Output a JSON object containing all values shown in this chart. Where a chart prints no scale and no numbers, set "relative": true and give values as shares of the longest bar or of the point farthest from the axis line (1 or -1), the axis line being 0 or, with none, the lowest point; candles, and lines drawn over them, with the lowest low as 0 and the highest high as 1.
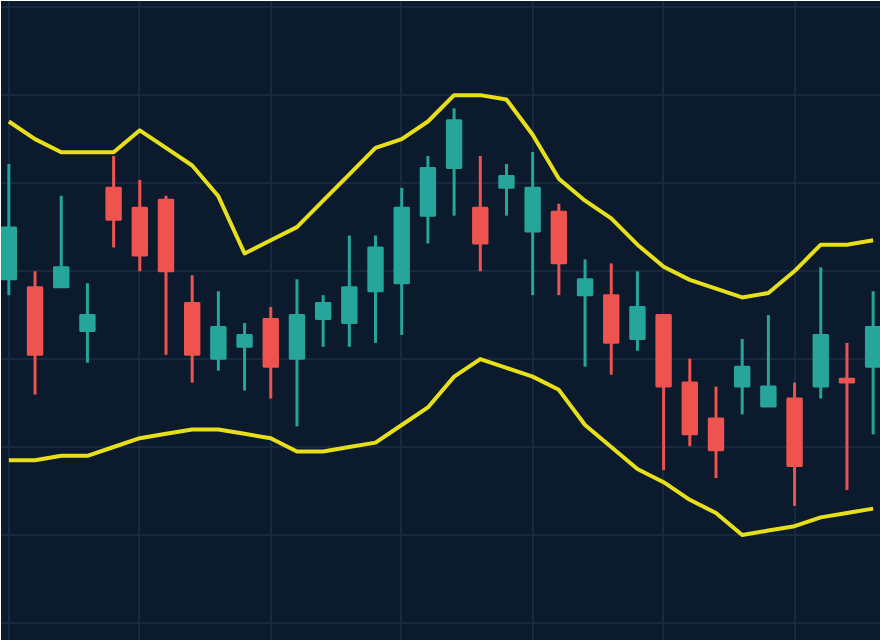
{
  "chart_data": [
    {
      "type": "candlestick",
      "relative": true,
      "categories": [
        null,
        null,
        null,
        null,
        null,
        null,
        null,
        null,
        null,
        null,
        null,
        null,
        null,
        null,
        null,
        null,
        null,
        null,
        null,
        null,
        null,
        null,
        null,
        null,
        null,
        null,
        null,
        null,
        null,
        null,
        null,
        null,
        null,
        null
      ],
      "ohlc": [
        [
          0.57,
          0.86,
          0.53,
          0.7
        ],
        [
          0.55,
          0.59,
          0.28,
          0.38
        ],
        [
          0.55,
          0.78,
          0.55,
          0.6
        ],
        [
          0.44,
          0.56,
          0.36,
          0.48
        ],
        [
          0.8,
          0.88,
          0.65,
          0.72
        ],
        [
          0.75,
          0.82,
          0.59,
          0.63
        ],
        [
          0.77,
          0.78,
          0.38,
          0.59
        ],
        [
          0.51,
          0.58,
          0.31,
          0.38
        ],
        [
          0.37,
          0.54,
          0.34,
          0.45
        ],
        [
          0.4,
          0.46,
          0.29,
          0.43
        ],
        [
          0.47,
          0.5,
          0.27,
          0.35
        ],
        [
          0.37,
          0.57,
          0.2,
          0.48
        ],
        [
          0.47,
          0.53,
          0.4,
          0.51
        ],
        [
          0.46,
          0.68,
          0.4,
          0.55
        ],
        [
          0.54,
          0.68,
          0.41,
          0.65
        ],
        [
          0.56,
          0.8,
          0.43,
          0.75
        ],
        [
          0.73,
          0.88,
          0.66,
          0.85
        ],
        [
          0.85,
          1,
          0.73,
          0.97
        ],
        [
          0.75,
          0.88,
          0.59,
          0.66
        ],
        [
          0.8,
          0.86,
          0.73,
          0.83
        ],
        [
          0.69,
          0.89,
          0.53,
          0.8
        ],
        [
          0.74,
          0.76,
          0.53,
          0.61
        ],
        [
          0.53,
          0.62,
          0.35,
          0.57
        ],
        [
          0.53,
          0.61,
          0.33,
          0.41
        ],
        [
          0.42,
          0.59,
          0.39,
          0.5
        ],
        [
          0.48,
          0.48,
          0.09,
          0.3
        ],
        [
          0.31,
          0.37,
          0.15,
          0.18
        ],
        [
          0.22,
          0.3,
          0.07,
          0.14
        ],
        [
          0.3,
          0.42,
          0.23,
          0.35
        ],
        [
          0.25,
          0.48,
          0.25,
          0.3
        ],
        [
          0.27,
          0.31,
          0,
          0.1
        ],
        [
          0.3,
          0.6,
          0.27,
          0.43
        ],
        [
          0.32,
          0.41,
          0.04,
          0.31
        ],
        [
          0.35,
          0.54,
          0.18,
          0.45
        ]
      ],
      "colors": [
        "#26a69a",
        "#ef5350",
        "#26a69a",
        "#26a69a",
        "#ef5350",
        "#ef5350",
        "#ef5350",
        "#ef5350",
        "#26a69a",
        "#26a69a",
        "#ef5350",
        "#26a69a",
        "#26a69a",
        "#26a69a",
        "#26a69a",
        "#26a69a",
        "#26a69a",
        "#26a69a",
        "#ef5350",
        "#26a69a",
        "#26a69a",
        "#ef5350",
        "#26a69a",
        "#ef5350",
        "#26a69a",
        "#ef5350",
        "#ef5350",
        "#ef5350",
        "#26a69a",
        "#26a69a",
        "#ef5350",
        "#26a69a",
        "#ef5350",
        "#26a69a"
      ]
    },
    {
      "type": "line",
      "relative": true,
      "grid": true,
      "categories": [
        null,
        null,
        null,
        null,
        null,
        null,
        null,
        null,
        null,
        null,
        null,
        null,
        null,
        null,
        null,
        null,
        null,
        null,
        null,
        null,
        null,
        null,
        null,
        null,
        null,
        null,
        null,
        null,
        null,
        null,
        null,
        null,
        null,
        null
      ],
      "series": [
        {
          "color": "#e6df1a",
          "values": [
            0.94,
            0.9,
            0.87,
            0.87,
            0.87,
            0.92,
            0.88,
            0.84,
            0.77,
            0.64,
            0.67,
            0.7,
            0.76,
            0.82,
            0.88,
            0.9,
            0.94,
            1,
            1.0,
            0.99,
            0.91,
            0.81,
            0.76,
            0.72,
            0.66,
            0.61,
            0.58,
            0.56,
            0.54,
            0.55,
            0.6,
            0.66,
            0.66,
            0.67
          ]
        },
        {
          "color": "#e6df1a",
          "values": [
            0.17,
            0.17,
            0.18,
            0.18,
            0.2,
            0.22,
            0.23,
            0.24,
            0.24,
            0.23,
            0.22,
            0.19,
            0.19,
            0.2,
            0.21,
            0.25,
            0.29,
            0.36,
            0.4,
            0.38,
            0.36,
            0.33,
            0.25,
            0.2,
            0.15,
            0.12,
            0.08,
            0.05,
            0,
            0.01,
            0.02,
            0.04,
            0.05,
            0.06
          ]
        }
      ]
    }
  ]
}
